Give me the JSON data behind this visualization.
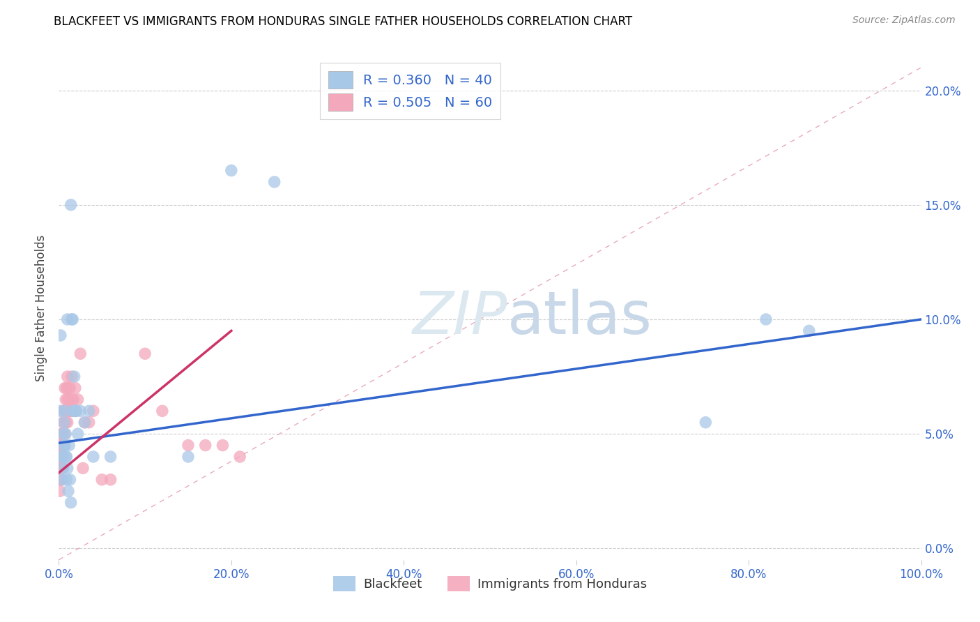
{
  "title": "BLACKFEET VS IMMIGRANTS FROM HONDURAS SINGLE FATHER HOUSEHOLDS CORRELATION CHART",
  "source": "Source: ZipAtlas.com",
  "xlabel_ticks": [
    "0.0%",
    "20.0%",
    "40.0%",
    "60.0%",
    "80.0%",
    "100.0%"
  ],
  "ylabel_ticks": [
    "0.0%",
    "5.0%",
    "10.0%",
    "15.0%",
    "20.0%"
  ],
  "ylabel_label": "Single Father Households",
  "legend_blue_r": "R = 0.360",
  "legend_blue_n": "N = 40",
  "legend_pink_r": "R = 0.505",
  "legend_pink_n": "N = 60",
  "blue_color": "#a8c8e8",
  "pink_color": "#f4a8bc",
  "blue_line_color": "#3366cc",
  "pink_line_color": "#cc3366",
  "diagonal_color": "#e8b0c0",
  "blue_scatter": [
    [
      0.001,
      0.06
    ],
    [
      0.002,
      0.093
    ],
    [
      0.003,
      0.04
    ],
    [
      0.004,
      0.03
    ],
    [
      0.004,
      0.04
    ],
    [
      0.005,
      0.035
    ],
    [
      0.005,
      0.05
    ],
    [
      0.006,
      0.045
    ],
    [
      0.006,
      0.055
    ],
    [
      0.007,
      0.045
    ],
    [
      0.007,
      0.06
    ],
    [
      0.008,
      0.04
    ],
    [
      0.008,
      0.05
    ],
    [
      0.009,
      0.03
    ],
    [
      0.009,
      0.04
    ],
    [
      0.01,
      0.035
    ],
    [
      0.01,
      0.1
    ],
    [
      0.011,
      0.025
    ],
    [
      0.012,
      0.045
    ],
    [
      0.013,
      0.03
    ],
    [
      0.014,
      0.02
    ],
    [
      0.014,
      0.15
    ],
    [
      0.015,
      0.1
    ],
    [
      0.016,
      0.1
    ],
    [
      0.016,
      0.06
    ],
    [
      0.018,
      0.075
    ],
    [
      0.019,
      0.06
    ],
    [
      0.02,
      0.06
    ],
    [
      0.022,
      0.05
    ],
    [
      0.025,
      0.06
    ],
    [
      0.03,
      0.055
    ],
    [
      0.035,
      0.06
    ],
    [
      0.04,
      0.04
    ],
    [
      0.06,
      0.04
    ],
    [
      0.15,
      0.04
    ],
    [
      0.2,
      0.165
    ],
    [
      0.25,
      0.16
    ],
    [
      0.75,
      0.055
    ],
    [
      0.82,
      0.1
    ],
    [
      0.87,
      0.095
    ]
  ],
  "pink_scatter": [
    [
      0.001,
      0.025
    ],
    [
      0.001,
      0.03
    ],
    [
      0.001,
      0.035
    ],
    [
      0.002,
      0.03
    ],
    [
      0.002,
      0.035
    ],
    [
      0.002,
      0.04
    ],
    [
      0.002,
      0.045
    ],
    [
      0.003,
      0.03
    ],
    [
      0.003,
      0.035
    ],
    [
      0.003,
      0.04
    ],
    [
      0.003,
      0.045
    ],
    [
      0.003,
      0.05
    ],
    [
      0.004,
      0.035
    ],
    [
      0.004,
      0.04
    ],
    [
      0.004,
      0.045
    ],
    [
      0.004,
      0.05
    ],
    [
      0.005,
      0.04
    ],
    [
      0.005,
      0.05
    ],
    [
      0.005,
      0.055
    ],
    [
      0.005,
      0.06
    ],
    [
      0.006,
      0.045
    ],
    [
      0.006,
      0.055
    ],
    [
      0.006,
      0.06
    ],
    [
      0.007,
      0.05
    ],
    [
      0.007,
      0.06
    ],
    [
      0.007,
      0.07
    ],
    [
      0.008,
      0.055
    ],
    [
      0.008,
      0.065
    ],
    [
      0.009,
      0.06
    ],
    [
      0.009,
      0.07
    ],
    [
      0.01,
      0.055
    ],
    [
      0.01,
      0.065
    ],
    [
      0.01,
      0.075
    ],
    [
      0.011,
      0.06
    ],
    [
      0.011,
      0.07
    ],
    [
      0.012,
      0.065
    ],
    [
      0.013,
      0.06
    ],
    [
      0.013,
      0.07
    ],
    [
      0.014,
      0.06
    ],
    [
      0.015,
      0.065
    ],
    [
      0.015,
      0.075
    ],
    [
      0.016,
      0.06
    ],
    [
      0.017,
      0.065
    ],
    [
      0.018,
      0.06
    ],
    [
      0.019,
      0.07
    ],
    [
      0.02,
      0.06
    ],
    [
      0.022,
      0.065
    ],
    [
      0.025,
      0.085
    ],
    [
      0.028,
      0.035
    ],
    [
      0.03,
      0.055
    ],
    [
      0.035,
      0.055
    ],
    [
      0.04,
      0.06
    ],
    [
      0.05,
      0.03
    ],
    [
      0.06,
      0.03
    ],
    [
      0.1,
      0.085
    ],
    [
      0.12,
      0.06
    ],
    [
      0.15,
      0.045
    ],
    [
      0.17,
      0.045
    ],
    [
      0.19,
      0.045
    ],
    [
      0.21,
      0.04
    ]
  ],
  "xlim": [
    0.0,
    1.0
  ],
  "ylim": [
    -0.005,
    0.215
  ],
  "blue_line_x": [
    0.0,
    1.0
  ],
  "blue_line_y": [
    0.046,
    0.1
  ],
  "pink_line_x": [
    0.0,
    0.2
  ],
  "pink_line_y": [
    0.033,
    0.095
  ]
}
